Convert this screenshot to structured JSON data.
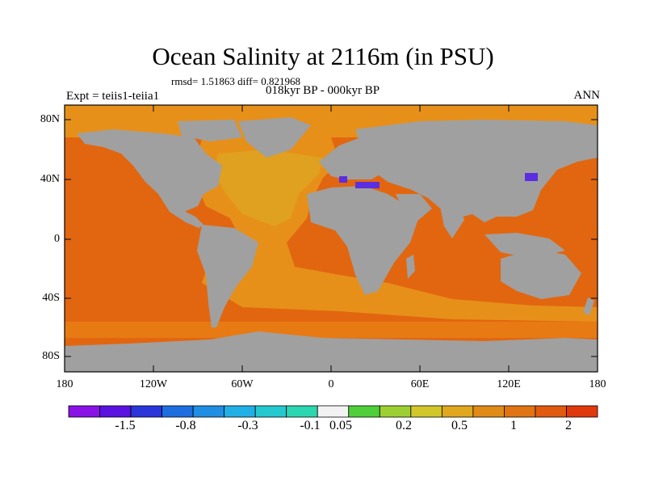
{
  "title": "Ocean Salinity at 2116m (in PSU)",
  "stats_line": "rmsd= 1.51863 diff= 0.821968",
  "period_line": "018kyr BP - 000kyr BP",
  "experiment": "Expt = teiis1-teiia1",
  "season": "ANN",
  "lat_ticks": [
    "80N",
    "40N",
    "0",
    "40S",
    "80S"
  ],
  "lon_ticks": [
    "180",
    "120W",
    "60W",
    "0",
    "60E",
    "120E",
    "180"
  ],
  "colorbar": {
    "colors": [
      "#8a12e6",
      "#5a12e0",
      "#2a36da",
      "#1d6fe0",
      "#1e8fe3",
      "#21b0e6",
      "#23c9cf",
      "#2bd6b0",
      "#f2f2f2",
      "#4ecf3a",
      "#9cd032",
      "#d2c62a",
      "#e0a81f",
      "#e08a18",
      "#e07414",
      "#e05a10",
      "#e03a0c"
    ],
    "labels": [
      "-1.5",
      "-0.8",
      "-0.3",
      "-0.1",
      "0.05",
      "0.2",
      "0.5",
      "1",
      "2"
    ]
  },
  "map_colors": {
    "land": "#a0a0a0",
    "ocean_high": "#e2660f",
    "atlantic": "#e6901a",
    "arctic": "#e6901a",
    "north_atlantic": "#e0a020",
    "southern": "#e87a14",
    "negative": "#5b2fe0",
    "coast": "#000000"
  }
}
